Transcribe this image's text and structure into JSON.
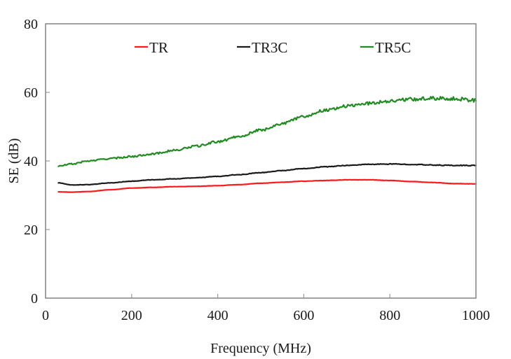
{
  "chart_data": {
    "type": "line",
    "title": "",
    "xlabel": "Frequency (MHz)",
    "ylabel": "SE (dB)",
    "xlim": [
      0,
      1000
    ],
    "ylim": [
      0,
      80
    ],
    "xticks": [
      0,
      200,
      400,
      600,
      800,
      1000
    ],
    "yticks": [
      0,
      20,
      40,
      60,
      80
    ],
    "grid": false,
    "legend": {
      "placement": "top-center",
      "orientation": "horizontal"
    },
    "series": [
      {
        "name": "TR",
        "color": "#ff1a1a",
        "noise": 0.05,
        "x": [
          30,
          60,
          100,
          150,
          200,
          250,
          300,
          350,
          400,
          450,
          500,
          550,
          600,
          650,
          700,
          750,
          800,
          850,
          900,
          950,
          1000
        ],
        "values": [
          31.0,
          30.9,
          31.1,
          31.6,
          32.1,
          32.3,
          32.5,
          32.6,
          32.8,
          33.1,
          33.5,
          33.8,
          34.1,
          34.3,
          34.5,
          34.5,
          34.3,
          34.0,
          33.7,
          33.4,
          33.3
        ]
      },
      {
        "name": "TR3C",
        "color": "#1a1a1a",
        "noise": 0.12,
        "x": [
          30,
          60,
          100,
          150,
          200,
          250,
          300,
          350,
          400,
          450,
          500,
          550,
          600,
          650,
          700,
          750,
          800,
          850,
          900,
          950,
          1000
        ],
        "values": [
          33.6,
          33.0,
          33.1,
          33.6,
          34.1,
          34.5,
          34.8,
          35.1,
          35.5,
          36.0,
          36.6,
          37.2,
          37.8,
          38.3,
          38.7,
          39.0,
          39.1,
          39.0,
          38.8,
          38.7,
          38.7
        ]
      },
      {
        "name": "TR5C",
        "color": "#1e8c1e",
        "noise": 0.55,
        "x": [
          30,
          60,
          100,
          150,
          200,
          250,
          300,
          350,
          400,
          450,
          500,
          550,
          600,
          650,
          700,
          750,
          800,
          850,
          900,
          950,
          1000
        ],
        "values": [
          38.5,
          39.1,
          40.0,
          40.7,
          41.3,
          42.1,
          43.1,
          44.3,
          45.6,
          47.2,
          49.0,
          50.9,
          53.0,
          54.8,
          56.0,
          56.8,
          57.5,
          58.0,
          58.3,
          58.2,
          57.7
        ]
      }
    ]
  }
}
